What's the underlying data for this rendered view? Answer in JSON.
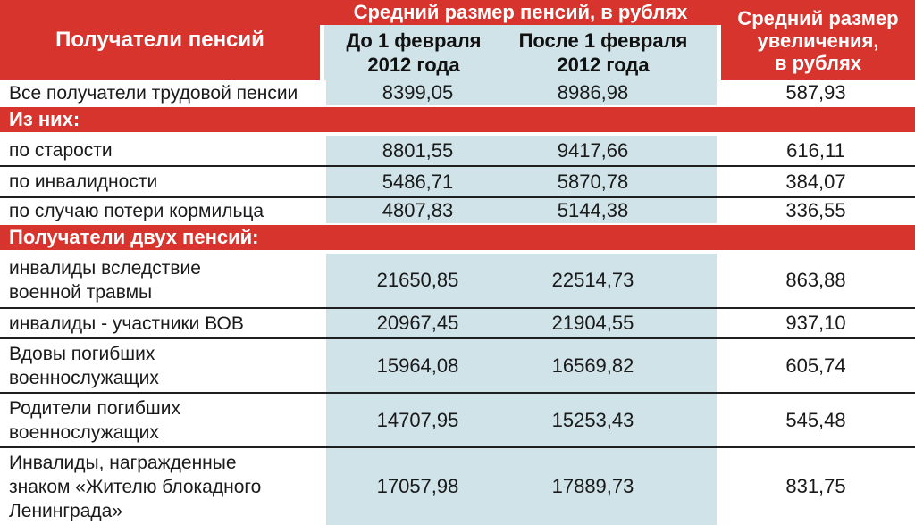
{
  "palette": {
    "header_red": "#d7342e",
    "value_band_blue": "#cfe3e8",
    "separator_line": "#1f1f1f",
    "header_text": "#ffffff",
    "body_text": "#1a1a1a"
  },
  "header": {
    "recipients": "Получатели пенсий",
    "group_title": "Средний размер пенсий, в рублях",
    "before": "До 1 февраля\n2012 года",
    "after": "После 1 февраля\n2012 года",
    "increase": "Средний размер\nувеличения,\nв рублях"
  },
  "rows": [
    {
      "type": "data",
      "label": "Все получатели трудовой пенсии",
      "before": "8399,05",
      "after": "8986,98",
      "increase": "587,93"
    },
    {
      "type": "section",
      "label": "Из них:"
    },
    {
      "type": "data",
      "label": "по старости",
      "before": "8801,55",
      "after": "9417,66",
      "increase": "616,11"
    },
    {
      "type": "data",
      "label": "по инвалидности",
      "before": "5486,71",
      "after": "5870,78",
      "increase": "384,07"
    },
    {
      "type": "data",
      "label": "по случаю потери кормильца",
      "before": "4807,83",
      "after": "5144,38",
      "increase": "336,55"
    },
    {
      "type": "section",
      "label": "Получатели двух пенсий:"
    },
    {
      "type": "data",
      "label": "инвалиды вследствие\nвоенной травмы",
      "before": "21650,85",
      "after": "22514,73",
      "increase": "863,88"
    },
    {
      "type": "data",
      "label": "инвалиды - участники ВОВ",
      "before": "20967,45",
      "after": "21904,55",
      "increase": "937,10"
    },
    {
      "type": "data",
      "label": "Вдовы погибших\nвоеннослужащих",
      "before": "15964,08",
      "after": "16569,82",
      "increase": "605,74"
    },
    {
      "type": "data",
      "label": "Родители погибших\nвоеннослужащих",
      "before": "14707,95",
      "after": "15253,43",
      "increase": "545,48"
    },
    {
      "type": "data",
      "label": "Инвалиды, награжденные\nзнаком «Жителю блокадного\nЛенинграда»",
      "before": "17057,98",
      "after": "17889,73",
      "increase": "831,75"
    }
  ],
  "chart_data": {
    "type": "table",
    "title": "Средний размер пенсий, в рублях",
    "columns": [
      "Получатели пенсий",
      "До 1 февраля 2012 года",
      "После 1 февраля 2012 года",
      "Средний размер увеличения, в рублях"
    ],
    "rows": [
      {
        "group": null,
        "category": "Все получатели трудовой пенсии",
        "before_feb1_2012": 8399.05,
        "after_feb1_2012": 8986.98,
        "increase": 587.93
      },
      {
        "group": "Из них:",
        "category": "по старости",
        "before_feb1_2012": 8801.55,
        "after_feb1_2012": 9417.66,
        "increase": 616.11
      },
      {
        "group": "Из них:",
        "category": "по инвалидности",
        "before_feb1_2012": 5486.71,
        "after_feb1_2012": 5870.78,
        "increase": 384.07
      },
      {
        "group": "Из них:",
        "category": "по случаю потери кормильца",
        "before_feb1_2012": 4807.83,
        "after_feb1_2012": 5144.38,
        "increase": 336.55
      },
      {
        "group": "Получатели двух пенсий:",
        "category": "инвалиды вследствие военной травмы",
        "before_feb1_2012": 21650.85,
        "after_feb1_2012": 22514.73,
        "increase": 863.88
      },
      {
        "group": "Получатели двух пенсий:",
        "category": "инвалиды - участники ВОВ",
        "before_feb1_2012": 20967.45,
        "after_feb1_2012": 21904.55,
        "increase": 937.1
      },
      {
        "group": "Получатели двух пенсий:",
        "category": "Вдовы погибших военнослужащих",
        "before_feb1_2012": 15964.08,
        "after_feb1_2012": 16569.82,
        "increase": 605.74
      },
      {
        "group": "Получатели двух пенсий:",
        "category": "Родители погибших военнослужащих",
        "before_feb1_2012": 14707.95,
        "after_feb1_2012": 15253.43,
        "increase": 545.48
      },
      {
        "group": "Получатели двух пенсий:",
        "category": "Инвалиды, награжденные знаком «Жителю блокадного Ленинграда»",
        "before_feb1_2012": 17057.98,
        "after_feb1_2012": 17889.73,
        "increase": 831.75
      }
    ]
  }
}
